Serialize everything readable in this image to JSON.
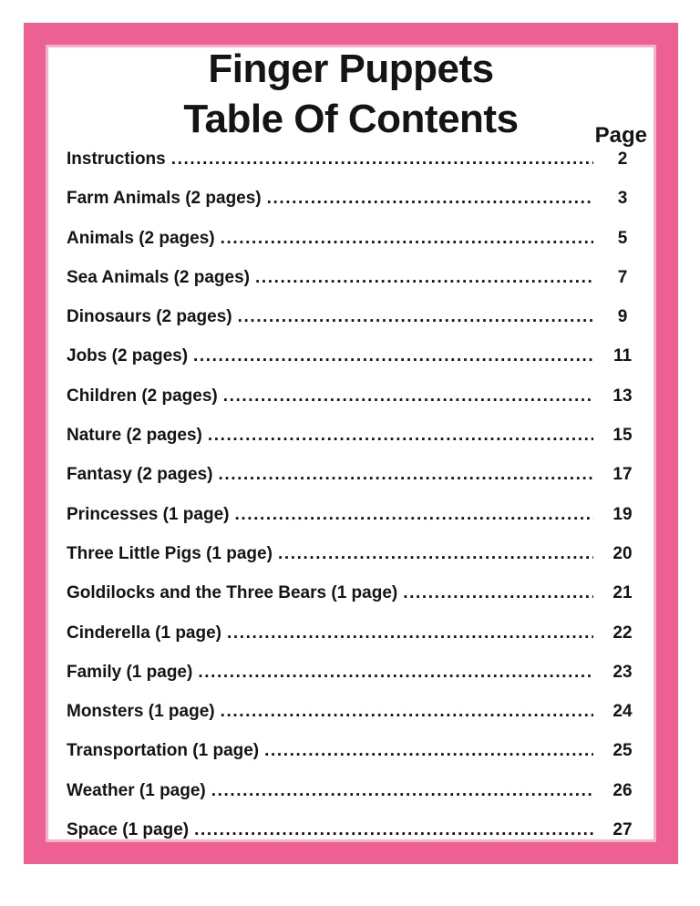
{
  "page": {
    "title_line1": "Finger Puppets",
    "title_line2": "Table Of Contents",
    "page_column_header": "Page",
    "colors": {
      "border": "#EC6192",
      "border_inner": "#F6B0CA",
      "text": "#141414",
      "background": "#FFFFFF"
    }
  },
  "toc": {
    "entries": [
      {
        "label": "Instructions",
        "page": "2"
      },
      {
        "label": "Farm Animals (2 pages)",
        "page": "3"
      },
      {
        "label": "Animals (2 pages)",
        "page": "5"
      },
      {
        "label": "Sea Animals (2 pages)",
        "page": "7"
      },
      {
        "label": "Dinosaurs (2 pages)",
        "page": "9"
      },
      {
        "label": "Jobs (2 pages)",
        "page": "11"
      },
      {
        "label": "Children (2 pages)",
        "page": "13"
      },
      {
        "label": "Nature (2 pages)",
        "page": "15"
      },
      {
        "label": "Fantasy (2 pages)",
        "page": "17"
      },
      {
        "label": "Princesses (1 page)",
        "page": "19"
      },
      {
        "label": "Three Little Pigs (1 page)",
        "page": "20"
      },
      {
        "label": "Goldilocks and the Three Bears (1 page)",
        "page": "21"
      },
      {
        "label": "Cinderella (1 page)",
        "page": "22"
      },
      {
        "label": "Family (1 page)",
        "page": "23"
      },
      {
        "label": "Monsters (1 page)",
        "page": "24"
      },
      {
        "label": "Transportation (1 page)",
        "page": "25"
      },
      {
        "label": "Weather (1 page)",
        "page": "26"
      },
      {
        "label": "Space (1 page)",
        "page": "27"
      }
    ]
  }
}
